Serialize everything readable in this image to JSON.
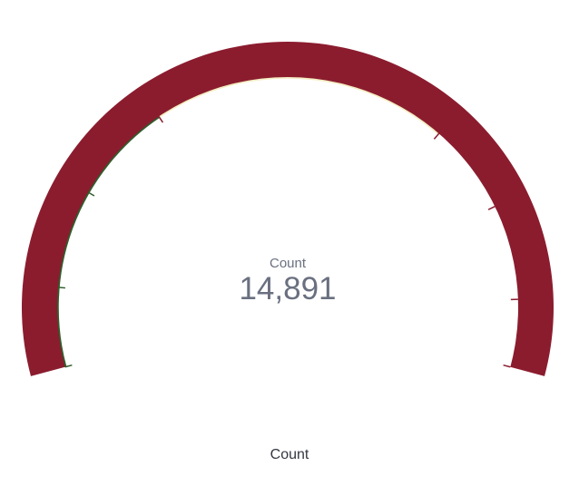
{
  "chart_data": {
    "type": "gauge",
    "metric_label": "Count",
    "value": 14891,
    "value_display": "14,891",
    "caption": "Count",
    "colors": {
      "arc": "#8b1c2e",
      "inner_edge_warm": "#f4eec4",
      "inner_edge_green": "#2f5e2c",
      "ticks": "#8b1c2e",
      "value_text": "#6a7080"
    }
  }
}
